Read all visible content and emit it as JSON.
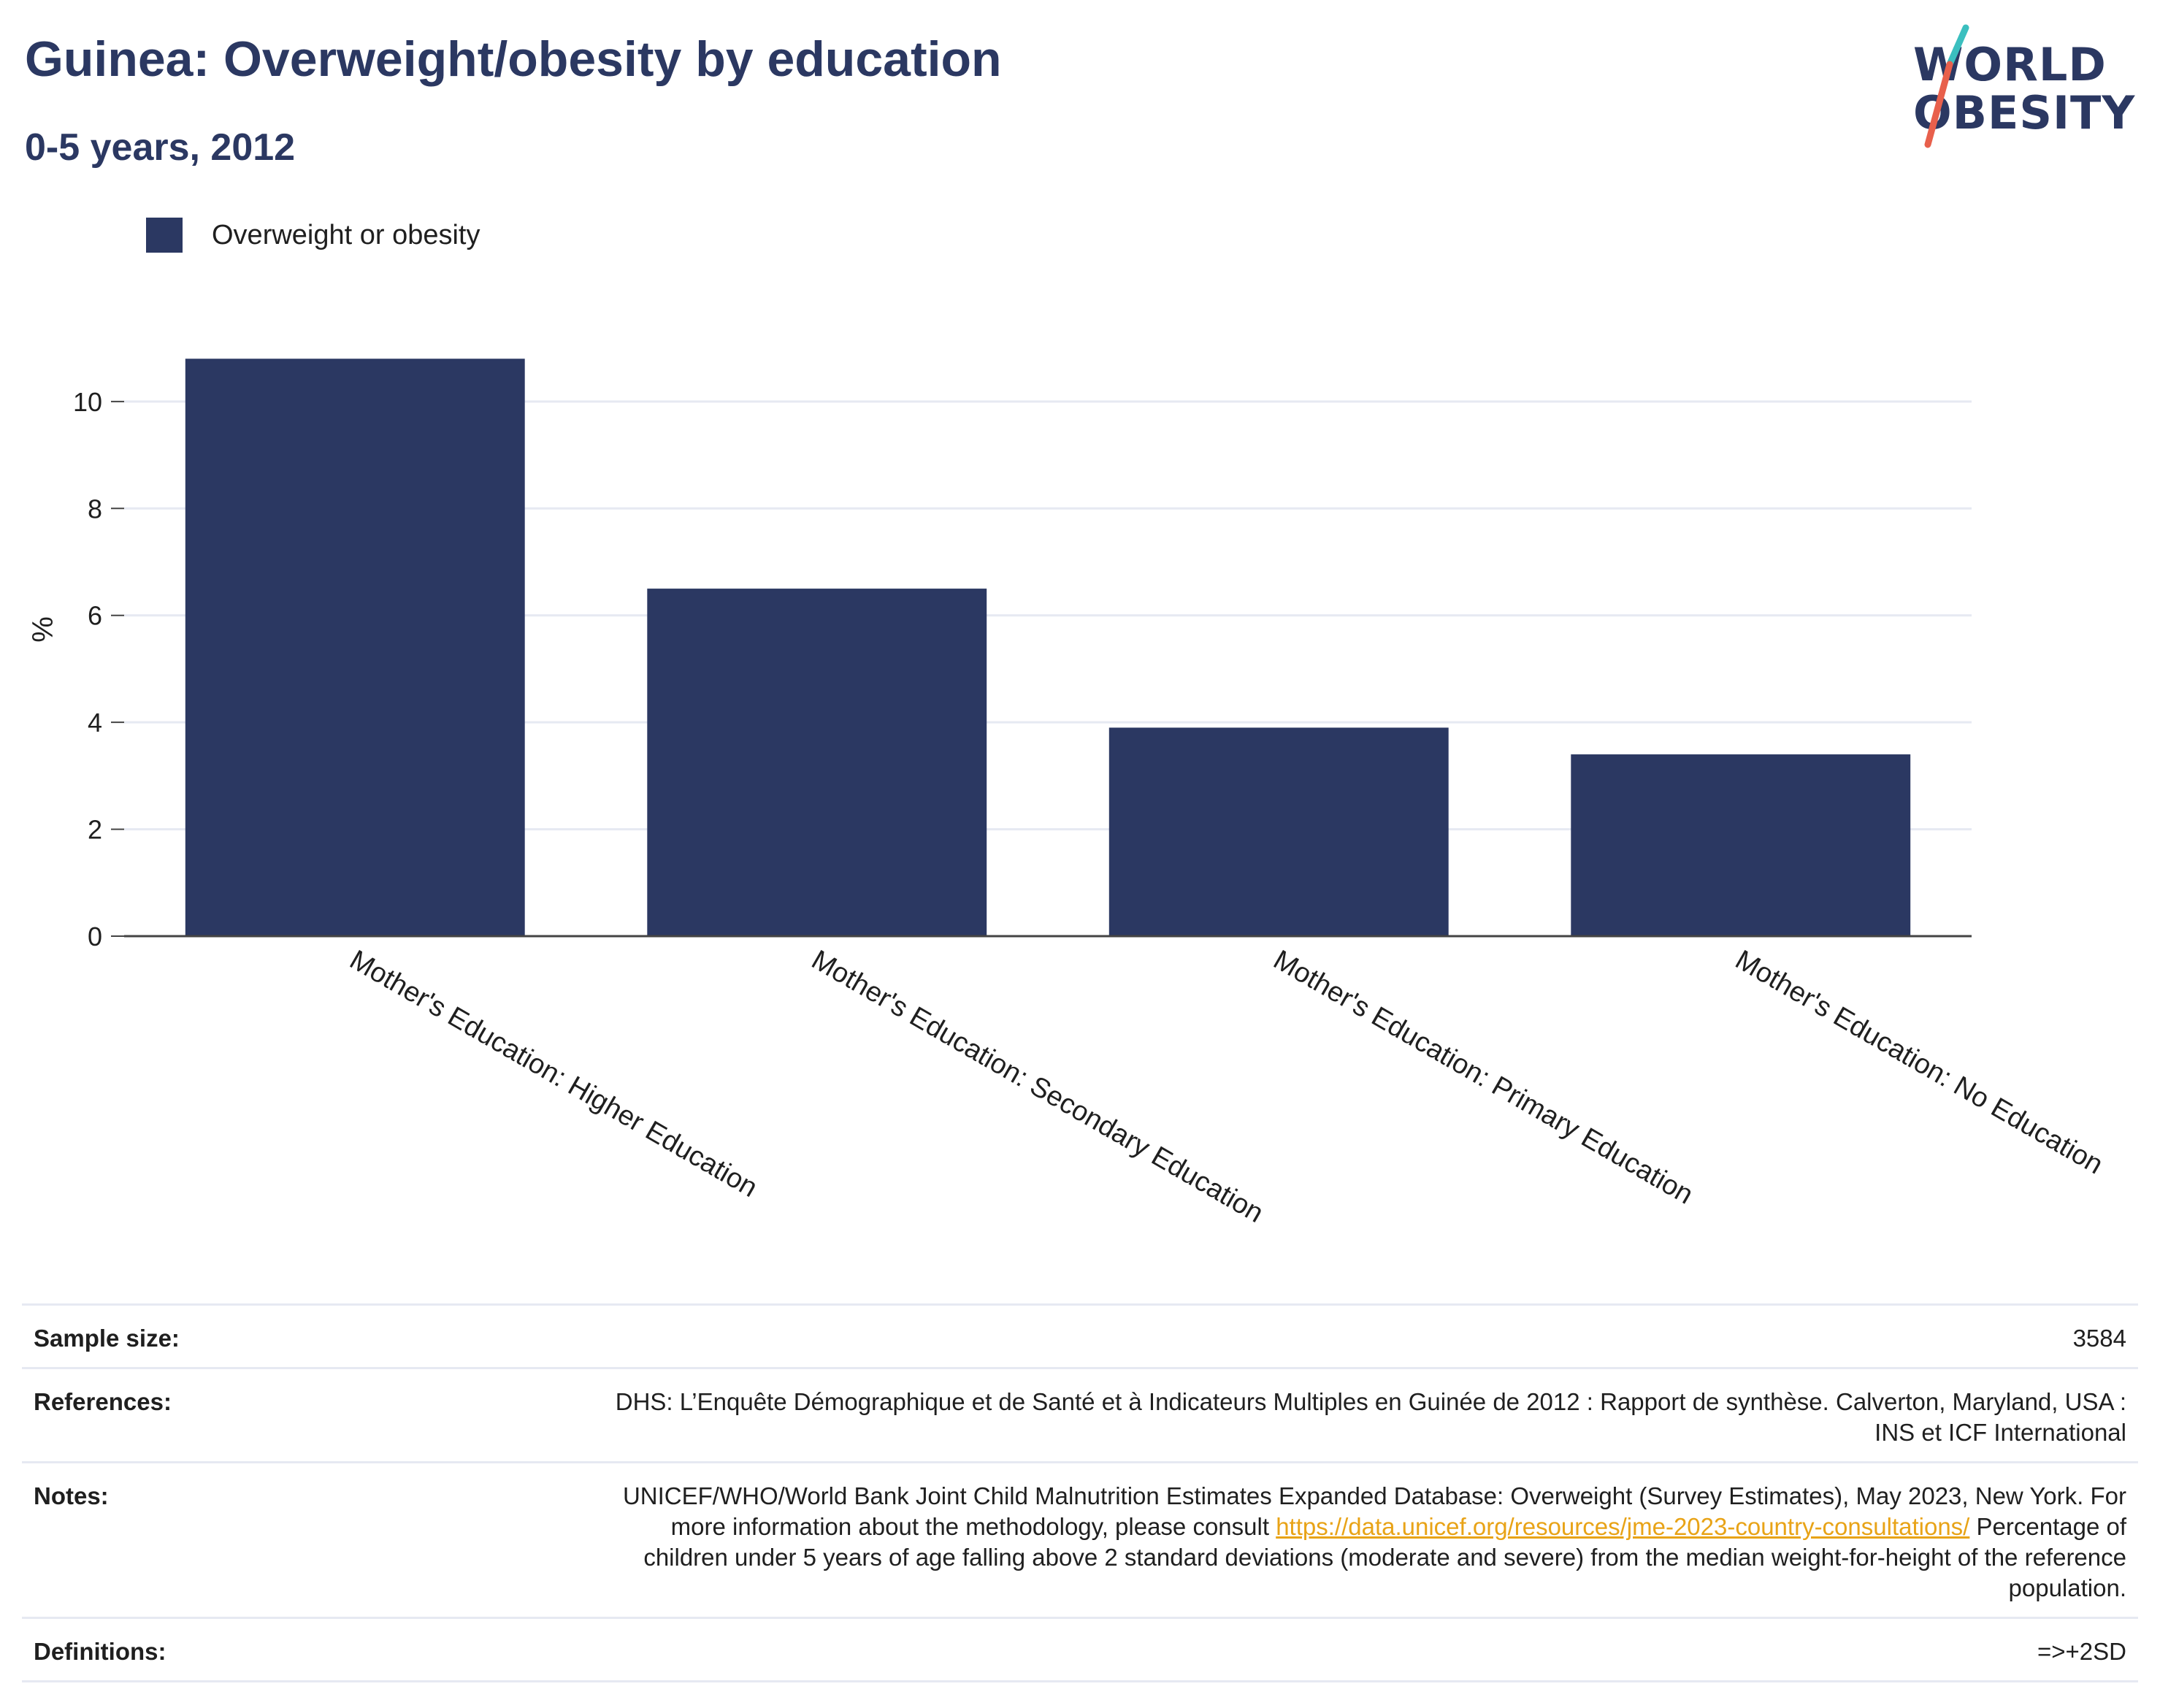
{
  "header": {
    "title": "Guinea: Overweight/obesity by education",
    "subtitle": "0-5 years, 2012"
  },
  "logo": {
    "line1": "WORLD",
    "line2": "OBESITY",
    "colors": {
      "text": "#2b3862",
      "slash_top": "#3bbfbf",
      "slash_bottom": "#e8604c"
    }
  },
  "legend": {
    "label": "Overweight or obesity",
    "color": "#2b3862"
  },
  "chart_data": {
    "type": "bar",
    "categories": [
      "Mother's Education: Higher Education",
      "Mother's Education: Secondary Education",
      "Mother's Education: Primary Education",
      "Mother's Education: No Education"
    ],
    "series": [
      {
        "name": "Overweight or obesity",
        "values": [
          10.8,
          6.5,
          3.9,
          3.4
        ],
        "color": "#2b3862"
      }
    ],
    "ylabel": "%",
    "ylim": [
      0,
      11.5
    ],
    "yticks": [
      0,
      2,
      4,
      6,
      8,
      10
    ],
    "grid": true,
    "legend_position": "top-left"
  },
  "info": {
    "sample_size": {
      "label": "Sample size:",
      "value": "3584"
    },
    "references": {
      "label": "References:",
      "value": "DHS: L’Enquête Démographique et de Santé et à Indicateurs Multiples en Guinée de 2012 : Rapport de synthèse. Calverton, Maryland, USA : INS et ICF International"
    },
    "notes": {
      "label": "Notes:",
      "text_before": "UNICEF/WHO/World Bank Joint Child Malnutrition Estimates Expanded Database: Overweight (Survey Estimates), May 2023, New York. For more information about the methodology, please consult ",
      "link": "https://data.unicef.org/resources/jme-2023-country-consultations/",
      "text_after": " Percentage of children under 5 years of age falling above 2 standard deviations (moderate and severe) from the median weight-for-height of the reference population."
    },
    "definitions": {
      "label": "Definitions:",
      "value": "=>+2SD"
    }
  }
}
